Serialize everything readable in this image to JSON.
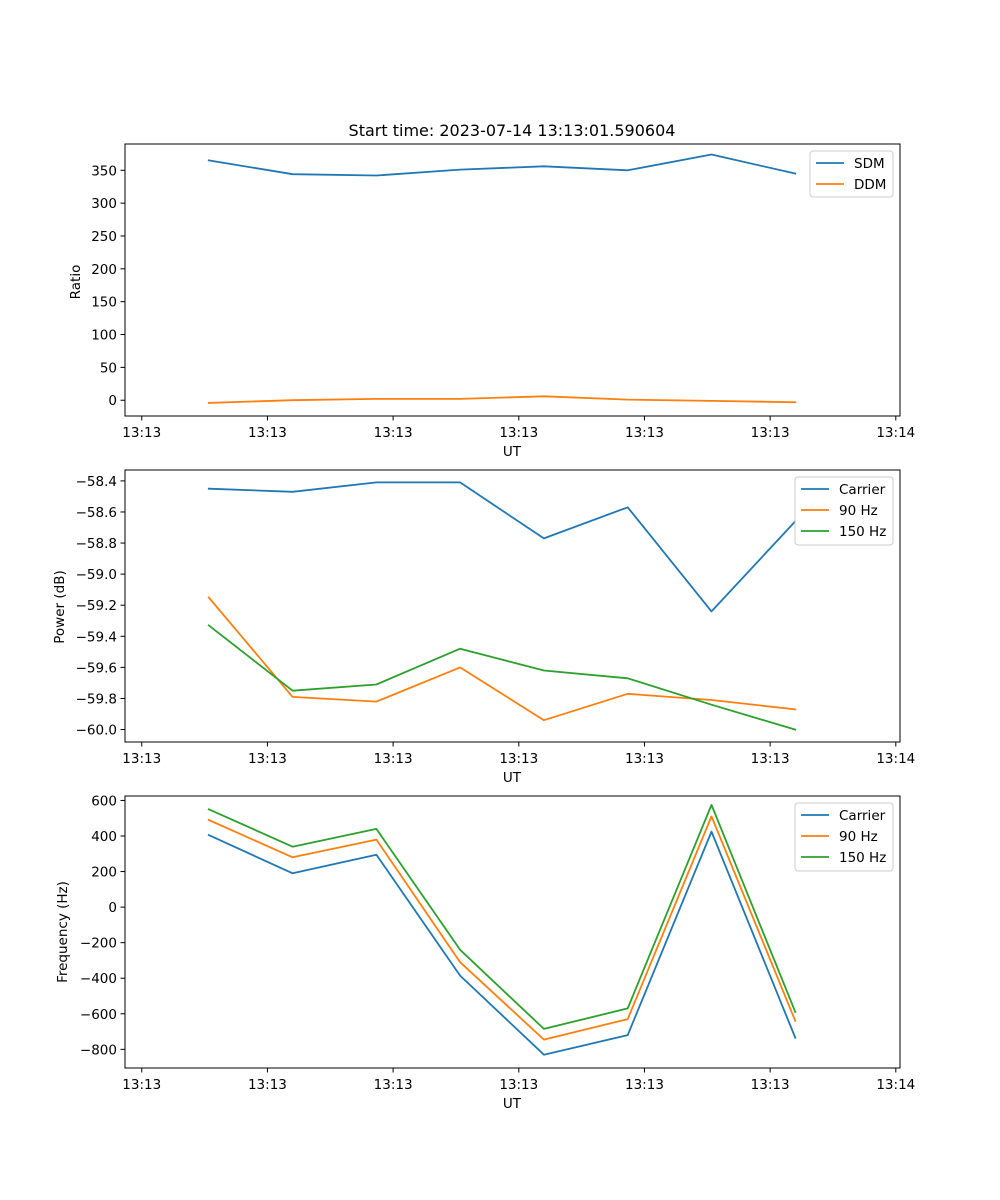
{
  "chart_data": [
    {
      "type": "line",
      "title": "Start time: 2023-07-14 13:13:01.590604",
      "xlabel": "UT",
      "ylabel": "Ratio",
      "x": [
        1,
        2,
        3,
        4,
        5,
        6,
        7,
        8
      ],
      "xlim": [
        0,
        9.25
      ],
      "xticks": [
        0.2,
        1.7,
        3.2,
        4.7,
        6.2,
        7.7,
        9.2
      ],
      "xtick_labels": [
        "13:13",
        "13:13",
        "13:13",
        "13:13",
        "13:13",
        "13:13",
        "13:14"
      ],
      "ylim": [
        -24,
        390
      ],
      "yticks": [
        0,
        50,
        100,
        150,
        200,
        250,
        300,
        350
      ],
      "ytick_labels": [
        "0",
        "50",
        "100",
        "150",
        "200",
        "250",
        "300",
        "350"
      ],
      "legend": "top-right",
      "series": [
        {
          "name": "SDM",
          "color": "#1f77b4",
          "values": [
            365,
            344,
            342,
            351,
            356,
            350,
            374,
            345
          ]
        },
        {
          "name": "DDM",
          "color": "#ff7f0e",
          "values": [
            -4,
            0,
            2,
            2,
            6,
            1,
            -1,
            -3
          ]
        }
      ]
    },
    {
      "type": "line",
      "title": "",
      "xlabel": "UT",
      "ylabel": "Power (dB)",
      "x": [
        1,
        2,
        3,
        4,
        5,
        6,
        7,
        8
      ],
      "xlim": [
        0,
        9.25
      ],
      "xticks": [
        0.2,
        1.7,
        3.2,
        4.7,
        6.2,
        7.7,
        9.2
      ],
      "xtick_labels": [
        "13:13",
        "13:13",
        "13:13",
        "13:13",
        "13:13",
        "13:13",
        "13:14"
      ],
      "ylim": [
        -60.08,
        -58.33
      ],
      "yticks": [
        -60.0,
        -59.8,
        -59.6,
        -59.4,
        -59.2,
        -59.0,
        -58.8,
        -58.6,
        -58.4
      ],
      "ytick_labels": [
        "−60.0",
        "−59.8",
        "−59.6",
        "−59.4",
        "−59.2",
        "−59.0",
        "−58.8",
        "−58.6",
        "−58.4"
      ],
      "legend": "top-right",
      "series": [
        {
          "name": "Carrier",
          "color": "#1f77b4",
          "values": [
            -58.45,
            -58.47,
            -58.41,
            -58.41,
            -58.77,
            -58.57,
            -59.24,
            -58.66
          ]
        },
        {
          "name": "90 Hz",
          "color": "#ff7f0e",
          "values": [
            -59.15,
            -59.79,
            -59.82,
            -59.6,
            -59.94,
            -59.77,
            -59.81,
            -59.87
          ]
        },
        {
          "name": "150 Hz",
          "color": "#2ca02c",
          "values": [
            -59.33,
            -59.75,
            -59.71,
            -59.48,
            -59.62,
            -59.67,
            -59.84,
            -60.0
          ]
        }
      ]
    },
    {
      "type": "line",
      "title": "",
      "xlabel": "UT",
      "ylabel": "Frequency (Hz)",
      "x": [
        1,
        2,
        3,
        4,
        5,
        6,
        7,
        8
      ],
      "xlim": [
        0,
        9.25
      ],
      "xticks": [
        0.2,
        1.7,
        3.2,
        4.7,
        6.2,
        7.7,
        9.2
      ],
      "xtick_labels": [
        "13:13",
        "13:13",
        "13:13",
        "13:13",
        "13:13",
        "13:13",
        "13:14"
      ],
      "ylim": [
        -905,
        625
      ],
      "yticks": [
        -800,
        -600,
        -400,
        -200,
        0,
        200,
        400,
        600
      ],
      "ytick_labels": [
        "−800",
        "−600",
        "−400",
        "−200",
        "0",
        "200",
        "400",
        "600"
      ],
      "legend": "top-right",
      "series": [
        {
          "name": "Carrier",
          "color": "#1f77b4",
          "values": [
            405,
            190,
            295,
            -385,
            -830,
            -720,
            425,
            -735
          ]
        },
        {
          "name": "90 Hz",
          "color": "#ff7f0e",
          "values": [
            490,
            280,
            380,
            -310,
            -745,
            -630,
            510,
            -640
          ]
        },
        {
          "name": "150 Hz",
          "color": "#2ca02c",
          "values": [
            550,
            340,
            440,
            -240,
            -685,
            -570,
            575,
            -590
          ]
        }
      ]
    }
  ]
}
